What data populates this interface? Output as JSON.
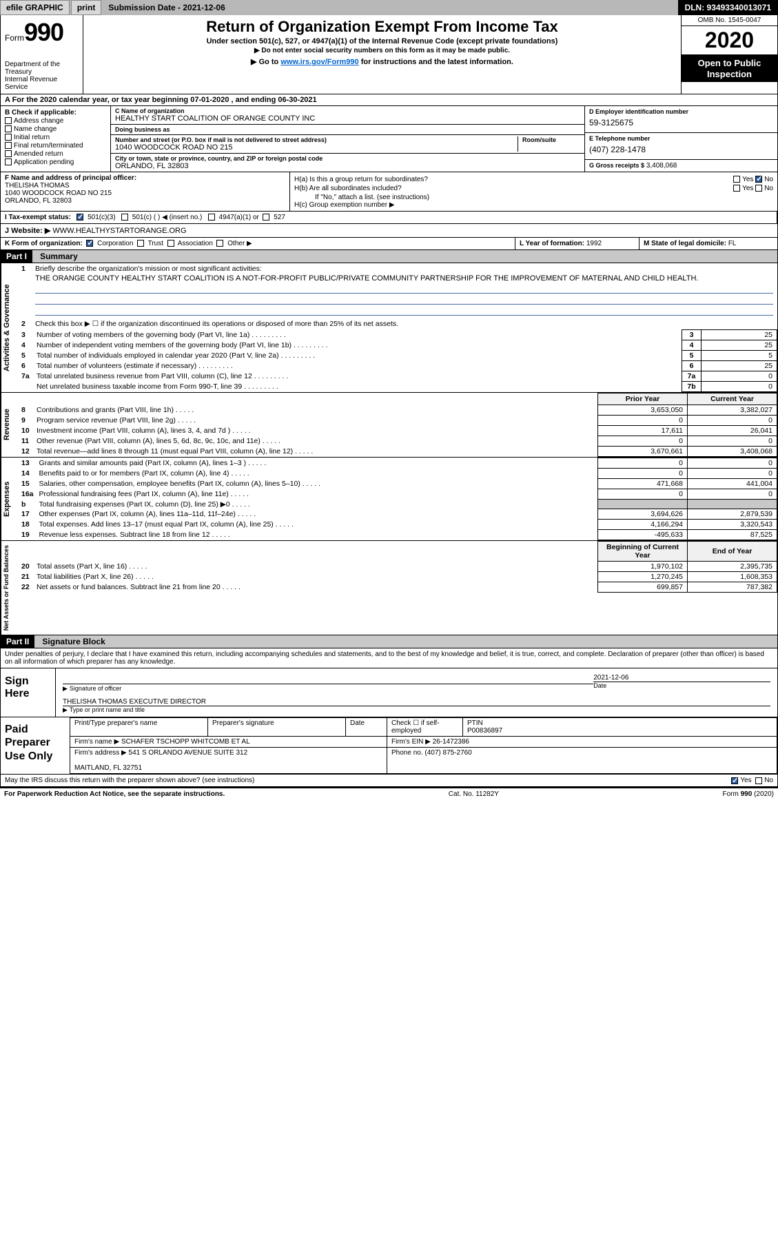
{
  "topbar": {
    "efile_label": "efile GRAPHIC",
    "print_label": "print",
    "submission_label": "Submission Date - 2021-12-06",
    "dln_label": "DLN: 93493340013071"
  },
  "header": {
    "form_prefix": "Form",
    "form_number": "990",
    "dept": "Department of the Treasury\nInternal Revenue Service",
    "title": "Return of Organization Exempt From Income Tax",
    "subtitle": "Under section 501(c), 527, or 4947(a)(1) of the Internal Revenue Code (except private foundations)",
    "note1": "▶ Do not enter social security numbers on this form as it may be made public.",
    "goto_prefix": "▶ Go to ",
    "goto_link": "www.irs.gov/Form990",
    "goto_suffix": " for instructions and the latest information.",
    "omb": "OMB No. 1545-0047",
    "tax_year": "2020",
    "open": "Open to Public Inspection"
  },
  "period": {
    "text_prefix": "A For the 2020 calendar year, or tax year beginning ",
    "begin": "07-01-2020",
    "mid": " , and ending ",
    "end": "06-30-2021"
  },
  "sectionB": {
    "header": "B Check if applicable:",
    "items": [
      "Address change",
      "Name change",
      "Initial return",
      "Final return/terminated",
      "Amended return",
      "Application pending"
    ]
  },
  "sectionC": {
    "name_label": "C Name of organization",
    "name": "HEALTHY START COALITION OF ORANGE COUNTY INC",
    "dba_label": "Doing business as",
    "dba": "",
    "addr_label": "Number and street (or P.O. box if mail is not delivered to street address)",
    "room_label": "Room/suite",
    "addr": "1040 WOODCOCK ROAD NO 215",
    "city_label": "City or town, state or province, country, and ZIP or foreign postal code",
    "city": "ORLANDO, FL  32803"
  },
  "sectionD": {
    "label": "D Employer identification number",
    "value": "59-3125675"
  },
  "sectionE": {
    "label": "E Telephone number",
    "value": "(407) 228-1478"
  },
  "sectionG": {
    "label": "G Gross receipts $",
    "value": "3,408,068"
  },
  "sectionF": {
    "label": "F Name and address of principal officer:",
    "name": "THELISHA THOMAS",
    "addr": "1040 WOODCOCK ROAD NO 215\nORLANDO, FL  32803"
  },
  "sectionH": {
    "ha_label": "H(a)  Is this a group return for subordinates?",
    "hb_label": "H(b)  Are all subordinates included?",
    "hb_note": "If \"No,\" attach a list. (see instructions)",
    "hc_label": "H(c)  Group exemption number ▶",
    "yes": "Yes",
    "no": "No"
  },
  "sectionI": {
    "label": "I    Tax-exempt status:",
    "opt1": "501(c)(3)",
    "opt2": "501(c) (  ) ◀ (insert no.)",
    "opt3": "4947(a)(1) or",
    "opt4": "527"
  },
  "sectionJ": {
    "label": "J    Website: ▶",
    "value": "WWW.HEALTHYSTARTORANGE.ORG"
  },
  "sectionK": {
    "label": "K Form of organization:",
    "opts": [
      "Corporation",
      "Trust",
      "Association",
      "Other ▶"
    ]
  },
  "sectionL": {
    "label": "L Year of formation:",
    "value": "1992"
  },
  "sectionM": {
    "label": "M State of legal domicile:",
    "value": "FL"
  },
  "part1": {
    "header": "Part I",
    "title": "Summary",
    "q1": "Briefly describe the organization's mission or most significant activities:",
    "mission": "THE ORANGE COUNTY HEALTHY START COALITION IS A NOT-FOR-PROFIT PUBLIC/PRIVATE COMMUNITY PARTNERSHIP FOR THE IMPROVEMENT OF MATERNAL AND CHILD HEALTH.",
    "q2": "Check this box ▶ ☐ if the organization discontinued its operations or disposed of more than 25% of its net assets.",
    "governance_label": "Activities & Governance",
    "revenue_label": "Revenue",
    "expenses_label": "Expenses",
    "netassets_label": "Net Assets or Fund Balances",
    "rows_gov": [
      {
        "n": "3",
        "t": "Number of voting members of the governing body (Part VI, line 1a)",
        "box": "3",
        "v": "25"
      },
      {
        "n": "4",
        "t": "Number of independent voting members of the governing body (Part VI, line 1b)",
        "box": "4",
        "v": "25"
      },
      {
        "n": "5",
        "t": "Total number of individuals employed in calendar year 2020 (Part V, line 2a)",
        "box": "5",
        "v": "5"
      },
      {
        "n": "6",
        "t": "Total number of volunteers (estimate if necessary)",
        "box": "6",
        "v": "25"
      },
      {
        "n": "7a",
        "t": "Total unrelated business revenue from Part VIII, column (C), line 12",
        "box": "7a",
        "v": "0"
      },
      {
        "n": "",
        "t": "Net unrelated business taxable income from Form 990-T, line 39",
        "box": "7b",
        "v": "0"
      }
    ],
    "py_header": "Prior Year",
    "cy_header": "Current Year",
    "rows_rev": [
      {
        "n": "8",
        "t": "Contributions and grants (Part VIII, line 1h)",
        "py": "3,653,050",
        "cy": "3,382,027"
      },
      {
        "n": "9",
        "t": "Program service revenue (Part VIII, line 2g)",
        "py": "0",
        "cy": "0"
      },
      {
        "n": "10",
        "t": "Investment income (Part VIII, column (A), lines 3, 4, and 7d )",
        "py": "17,611",
        "cy": "26,041"
      },
      {
        "n": "11",
        "t": "Other revenue (Part VIII, column (A), lines 5, 6d, 8c, 9c, 10c, and 11e)",
        "py": "0",
        "cy": "0"
      },
      {
        "n": "12",
        "t": "Total revenue—add lines 8 through 11 (must equal Part VIII, column (A), line 12)",
        "py": "3,670,661",
        "cy": "3,408,068"
      }
    ],
    "rows_exp": [
      {
        "n": "13",
        "t": "Grants and similar amounts paid (Part IX, column (A), lines 1–3 )",
        "py": "0",
        "cy": "0"
      },
      {
        "n": "14",
        "t": "Benefits paid to or for members (Part IX, column (A), line 4)",
        "py": "0",
        "cy": "0"
      },
      {
        "n": "15",
        "t": "Salaries, other compensation, employee benefits (Part IX, column (A), lines 5–10)",
        "py": "471,668",
        "cy": "441,004"
      },
      {
        "n": "16a",
        "t": "Professional fundraising fees (Part IX, column (A), line 11e)",
        "py": "0",
        "cy": "0"
      },
      {
        "n": "b",
        "t": "Total fundraising expenses (Part IX, column (D), line 25) ▶0",
        "py": "",
        "cy": "",
        "shaded": true
      },
      {
        "n": "17",
        "t": "Other expenses (Part IX, column (A), lines 11a–11d, 11f–24e)",
        "py": "3,694,626",
        "cy": "2,879,539"
      },
      {
        "n": "18",
        "t": "Total expenses. Add lines 13–17 (must equal Part IX, column (A), line 25)",
        "py": "4,166,294",
        "cy": "3,320,543"
      },
      {
        "n": "19",
        "t": "Revenue less expenses. Subtract line 18 from line 12",
        "py": "-495,633",
        "cy": "87,525"
      }
    ],
    "boy_header": "Beginning of Current Year",
    "eoy_header": "End of Year",
    "rows_na": [
      {
        "n": "20",
        "t": "Total assets (Part X, line 16)",
        "py": "1,970,102",
        "cy": "2,395,735"
      },
      {
        "n": "21",
        "t": "Total liabilities (Part X, line 26)",
        "py": "1,270,245",
        "cy": "1,608,353"
      },
      {
        "n": "22",
        "t": "Net assets or fund balances. Subtract line 21 from line 20",
        "py": "699,857",
        "cy": "787,382"
      }
    ]
  },
  "part2": {
    "header": "Part II",
    "title": "Signature Block",
    "declaration": "Under penalties of perjury, I declare that I have examined this return, including accompanying schedules and statements, and to the best of my knowledge and belief, it is true, correct, and complete. Declaration of preparer (other than officer) is based on all information of which preparer has any knowledge.",
    "sign_here": "Sign Here",
    "sig_officer_label": "Signature of officer",
    "date_label": "Date",
    "sig_date": "2021-12-06",
    "officer_name": "THELISHA THOMAS EXECUTIVE DIRECTOR",
    "type_label": "Type or print name and title",
    "paid_label": "Paid Preparer Use Only",
    "prep_name_label": "Print/Type preparer's name",
    "prep_sig_label": "Preparer's signature",
    "prep_date_label": "Date",
    "check_self": "Check ☐ if self-employed",
    "ptin_label": "PTIN",
    "ptin": "P00836897",
    "firm_name_label": "Firm's name    ▶",
    "firm_name": "SCHAFER TSCHOPP WHITCOMB ET AL",
    "firm_ein_label": "Firm's EIN ▶",
    "firm_ein": "26-1472386",
    "firm_addr_label": "Firm's address ▶",
    "firm_addr": "541 S ORLANDO AVENUE SUITE 312\n\nMAITLAND, FL  32751",
    "phone_label": "Phone no.",
    "phone": "(407) 875-2760",
    "discuss": "May the IRS discuss this return with the preparer shown above? (see instructions)",
    "yes": "Yes",
    "no": "No"
  },
  "footer": {
    "pra": "For Paperwork Reduction Act Notice, see the separate instructions.",
    "cat": "Cat. No. 11282Y",
    "form": "Form 990 (2020)"
  }
}
